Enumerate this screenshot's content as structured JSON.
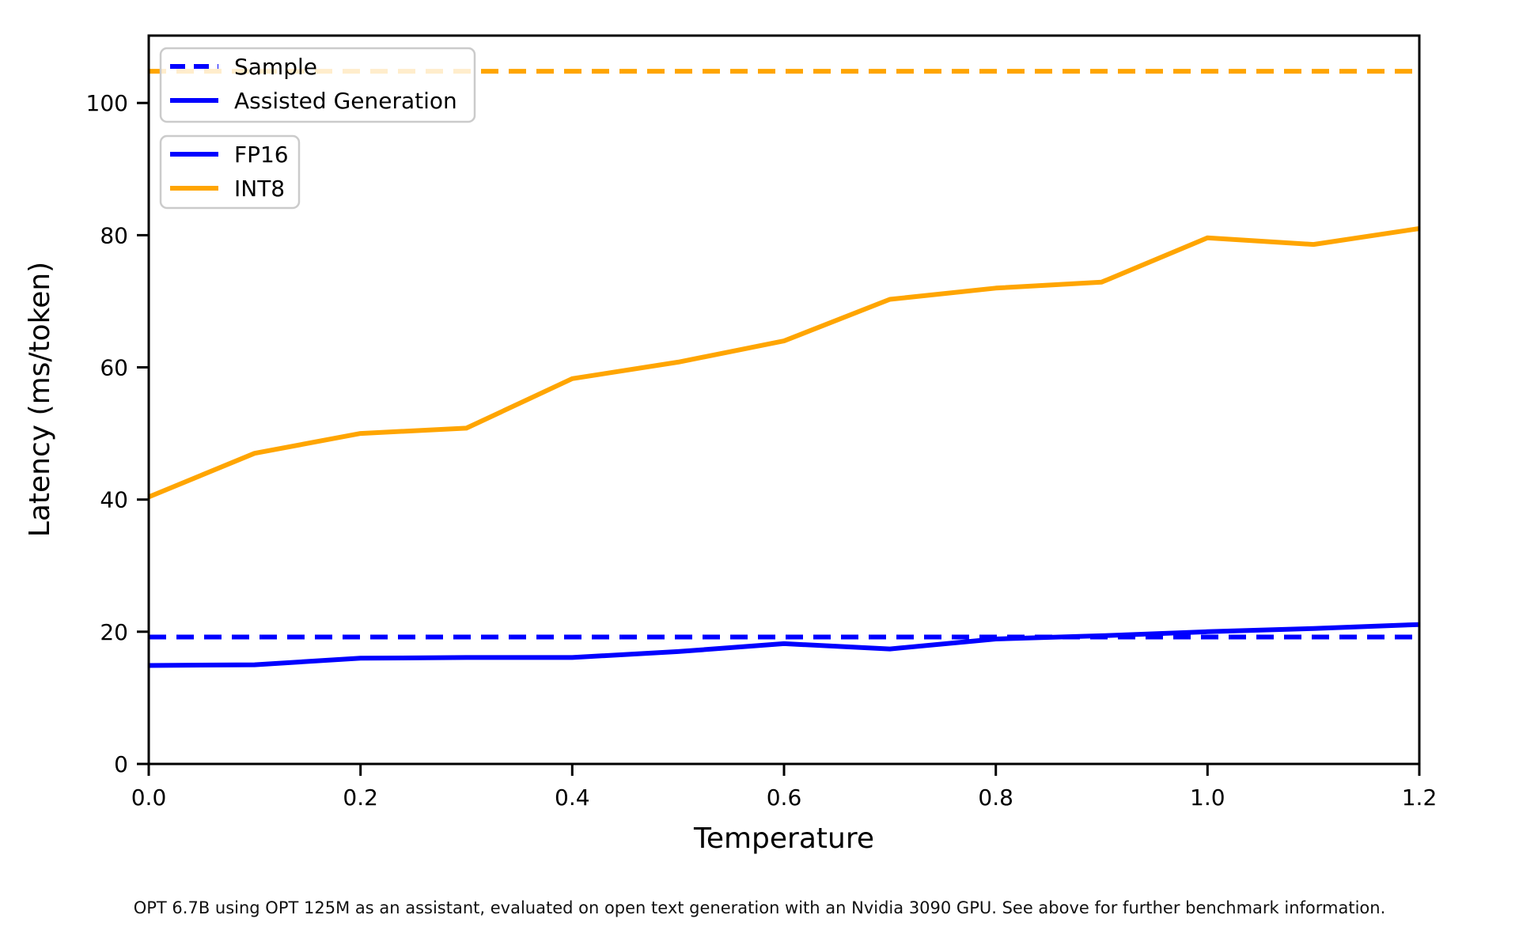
{
  "figure": {
    "background": "#ffffff",
    "caption": "OPT 6.7B using OPT 125M as an assistant, evaluated on open text generation with an Nvidia 3090 GPU. See above for further benchmark information."
  },
  "chart_data": {
    "type": "line",
    "title": "",
    "xlabel": "Temperature",
    "ylabel": "Latency (ms/token)",
    "xlim": [
      0.0,
      1.2
    ],
    "ylim": [
      0,
      110.2
    ],
    "grid": false,
    "xticks": [
      "0.0",
      "0.2",
      "0.4",
      "0.6",
      "0.8",
      "1.0",
      "1.2"
    ],
    "xtick_values": [
      0.0,
      0.2,
      0.4,
      0.6,
      0.8,
      1.0,
      1.2
    ],
    "yticks": [
      "0",
      "20",
      "40",
      "60",
      "80",
      "100"
    ],
    "ytick_values": [
      0,
      20,
      40,
      60,
      80,
      100
    ],
    "x": [
      0.0,
      0.1,
      0.2,
      0.3,
      0.4,
      0.5,
      0.6,
      0.7,
      0.8,
      0.9,
      1.0,
      1.1,
      1.2
    ],
    "series": [
      {
        "name": "INT8 Sample",
        "color": "#ffa500",
        "line_style": "dashed",
        "constant_y": 104.8
      },
      {
        "name": "FP16 Sample",
        "color": "#0000ff",
        "line_style": "dashed",
        "constant_y": 19.2
      },
      {
        "name": "INT8 Assisted Generation",
        "color": "#ffa500",
        "line_style": "solid",
        "values": [
          40.4,
          47.0,
          50.0,
          50.8,
          58.3,
          60.8,
          64.0,
          70.3,
          72.0,
          72.9,
          79.6,
          78.6,
          81.0
        ]
      },
      {
        "name": "FP16 Assisted Generation",
        "color": "#0000ff",
        "line_style": "solid",
        "values": [
          14.9,
          15.0,
          16.0,
          16.1,
          16.1,
          17.0,
          18.2,
          17.4,
          18.9,
          19.4,
          20.0,
          20.5,
          21.1
        ]
      }
    ],
    "legends": [
      {
        "name": "generation-mode",
        "position": "upper-left",
        "entries": [
          {
            "label": "Sample",
            "color": "#0000ff",
            "line_style": "dashed"
          },
          {
            "label": "Assisted Generation",
            "color": "#0000ff",
            "line_style": "solid"
          }
        ]
      },
      {
        "name": "precision",
        "position": "upper-left-below",
        "entries": [
          {
            "label": "FP16",
            "color": "#0000ff",
            "line_style": "solid"
          },
          {
            "label": "INT8",
            "color": "#ffa500",
            "line_style": "solid"
          }
        ]
      }
    ],
    "colors": {
      "fp16": "#0000ff",
      "int8": "#ffa500",
      "axes": "#000000",
      "legend_border": "#cbcbcb"
    }
  }
}
